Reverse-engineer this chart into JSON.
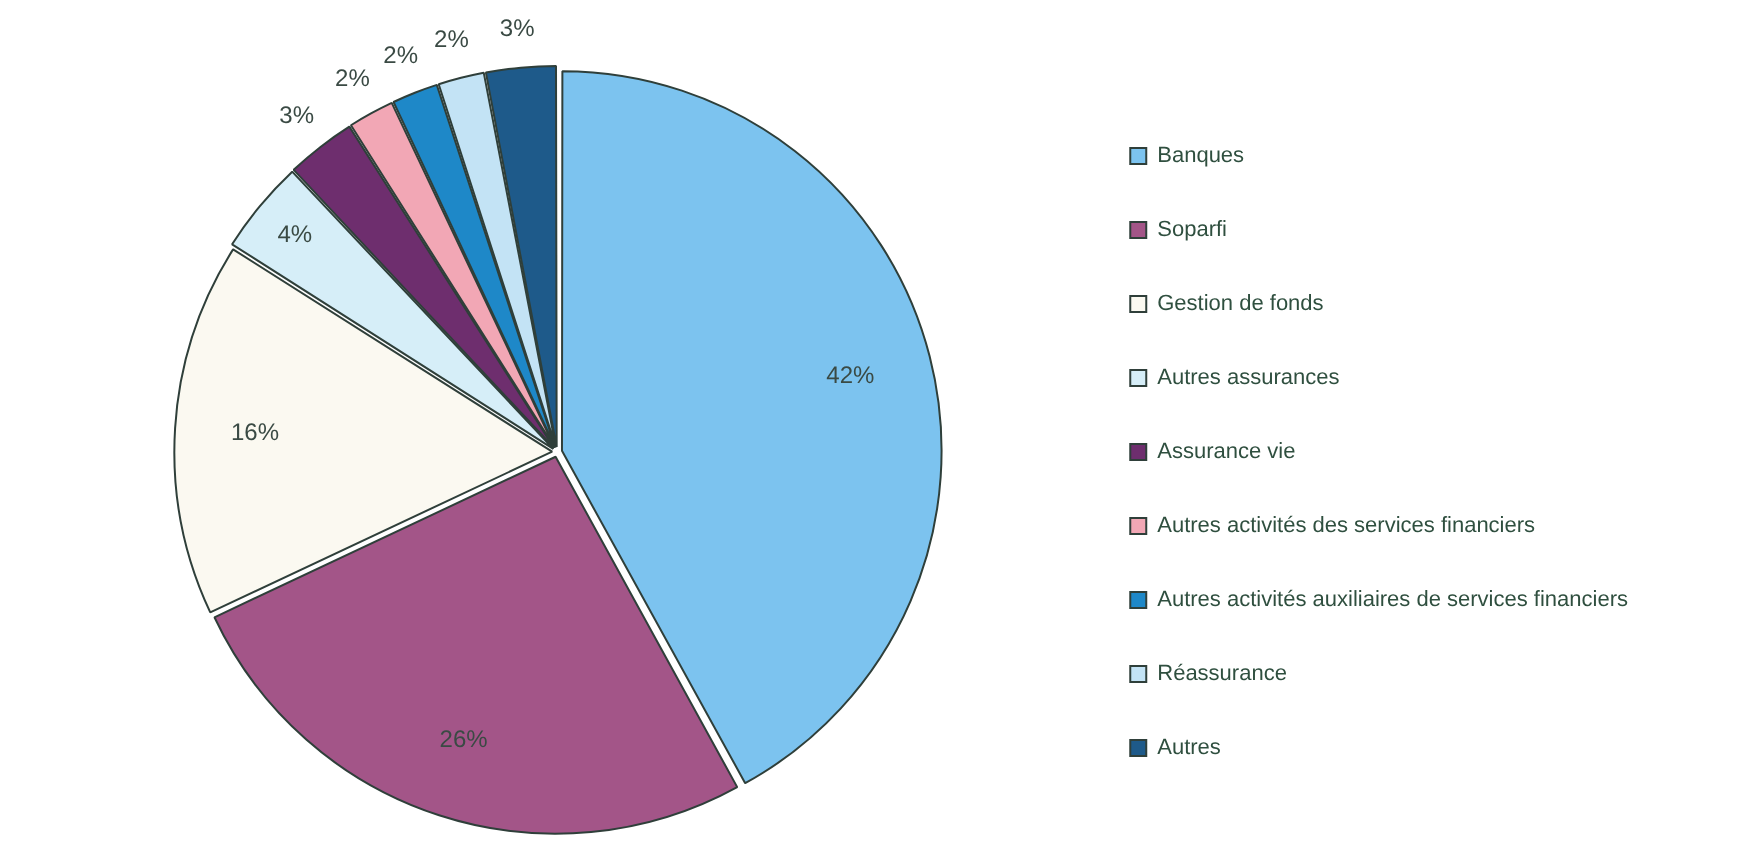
{
  "chart_data": {
    "type": "pie",
    "categories": [
      "Banques",
      "Soparfi",
      "Gestion de fonds",
      "Autres assurances",
      "Assurance vie",
      "Autres activités des services financiers",
      "Autres activités auxiliaires de services financiers",
      "Réassurance",
      "Autres"
    ],
    "values": [
      42,
      26,
      16,
      4,
      3,
      2,
      2,
      2,
      3
    ],
    "value_labels": [
      "42%",
      "26%",
      "16%",
      "4%",
      "3%",
      "2%",
      "2%",
      "2%",
      "3%"
    ],
    "colors": [
      "#7cc3ef",
      "#a35588",
      "#fbf9f1",
      "#d6eef8",
      "#6e2e6e",
      "#f2a7b5",
      "#1e88c8",
      "#c3e3f5",
      "#1e5a8a"
    ],
    "legend": "right"
  }
}
